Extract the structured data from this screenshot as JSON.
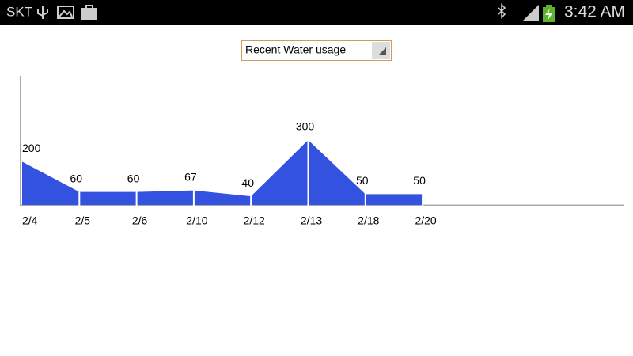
{
  "status_bar": {
    "carrier": "SKT",
    "time": "3:42 AM"
  },
  "dropdown": {
    "selected": "Recent Water usage"
  },
  "chart_data": {
    "type": "area",
    "categories": [
      "2/4",
      "2/5",
      "2/6",
      "2/10",
      "2/12",
      "2/13",
      "2/18",
      "2/20"
    ],
    "values": [
      200,
      60,
      60,
      67,
      40,
      300,
      50,
      50
    ],
    "color": "#3352e0",
    "ylim": [
      0,
      600
    ]
  }
}
